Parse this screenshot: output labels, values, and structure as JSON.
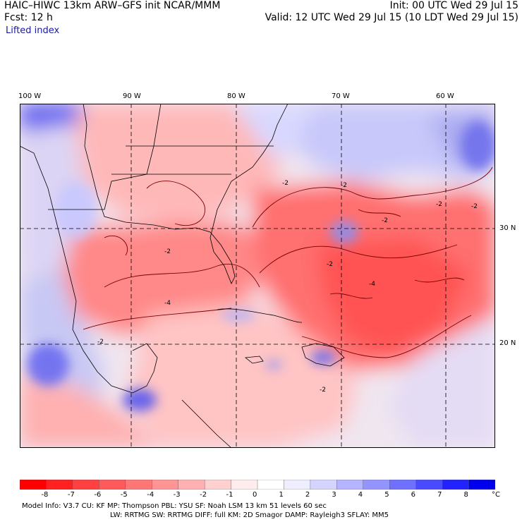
{
  "header": {
    "left1": "HAIC–HIWC 13km ARW–GFS init   NCAR/MMM",
    "left2": "Fcst:    12 h",
    "right1": "Init: 00 UTC Wed 29 Jul 15",
    "right2": "Valid: 12 UTC Wed 29 Jul 15 (10 LDT Wed 29 Jul 15)",
    "field": "Lifted index"
  },
  "lon_labels": [
    "100 W",
    "90 W",
    "80 W",
    "70 W",
    "60 W"
  ],
  "lat_labels": [
    "30 N",
    "20 N"
  ],
  "contour_labels": [
    "-2",
    "-2",
    "-2",
    "-2",
    "-2",
    "-2",
    "-4",
    "-4",
    "-2",
    "-2",
    "-2"
  ],
  "colorbar": {
    "ticks": [
      "-8",
      "-7",
      "-6",
      "-5",
      "-4",
      "-3",
      "-2",
      "-1",
      "0",
      "1",
      "2",
      "3",
      "4",
      "5",
      "6",
      "7",
      "8"
    ],
    "unit": "°C",
    "colors": [
      "#ff0000",
      "#ff2020",
      "#ff4040",
      "#ff5a5a",
      "#ff7676",
      "#ff9494",
      "#ffb0b0",
      "#ffd0d0",
      "#ffecec",
      "#ffffff",
      "#eeeeff",
      "#d4d4ff",
      "#b4b4ff",
      "#9494ff",
      "#7070ff",
      "#4a4aff",
      "#2222ff",
      "#0000ee"
    ]
  },
  "footer": {
    "line1": "Model Info: V3.7       CU: KF       MP: Thompson       PBL: YSU       SF: Noah LSM       13 km     51 levels    60 sec",
    "line2": "LW: RRTMG      SW: RRTMG     DIFF: full    KM: 2D Smagor DAMP: Rayleigh3   SFLAY: MM5"
  }
}
